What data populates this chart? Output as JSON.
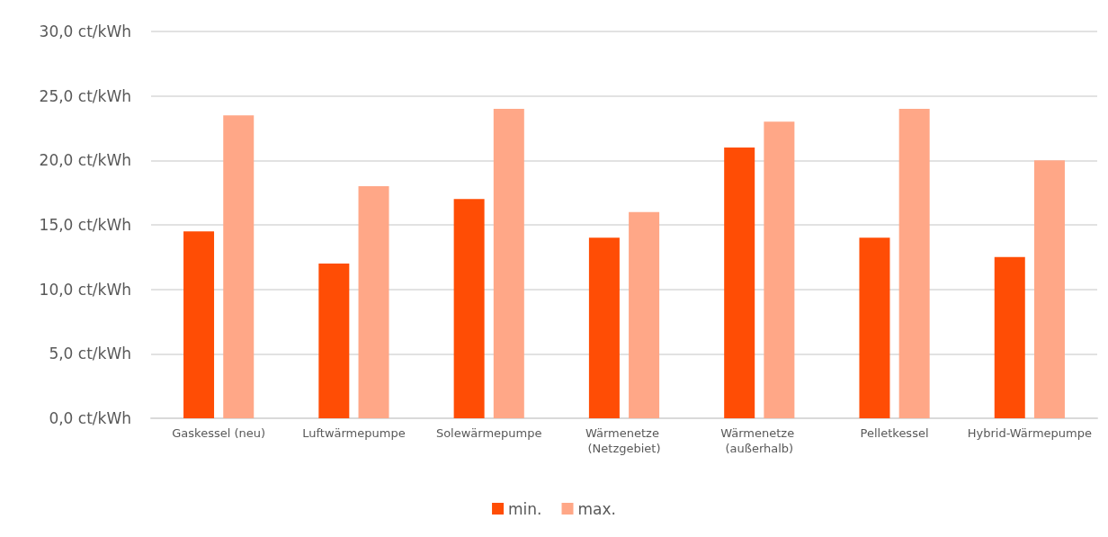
{
  "chart_data": {
    "type": "bar",
    "categories": [
      "Gaskessel (neu)",
      "Luftwärmepumpe",
      "Solewärmepumpe",
      "Wärmenetze (Netzgebiet)",
      "Wärmenetze (außerhalb)",
      "Pelletkessel",
      "Hybrid-Wärmepumpe"
    ],
    "series": [
      {
        "name": "min.",
        "color": "#ff4d05",
        "values": [
          14.5,
          12,
          17,
          14,
          21,
          14,
          12.5
        ]
      },
      {
        "name": "max.",
        "color": "#ffa787",
        "values": [
          23.5,
          18,
          24,
          16,
          23,
          24,
          20
        ]
      }
    ],
    "ylim": [
      0,
      30
    ],
    "yticks": [
      {
        "value": 0,
        "label": "0,0 ct/kWh"
      },
      {
        "value": 5,
        "label": "5,0 ct/kWh"
      },
      {
        "value": 10,
        "label": "10,0 ct/kWh"
      },
      {
        "value": 15,
        "label": "15,0 ct/kWh"
      },
      {
        "value": 20,
        "label": "20,0 ct/kWh"
      },
      {
        "value": 25,
        "label": "25,0 ct/kWh"
      },
      {
        "value": 30,
        "label": "30,0 ct/kWh"
      }
    ],
    "grid": "y",
    "legend": "bottom"
  }
}
